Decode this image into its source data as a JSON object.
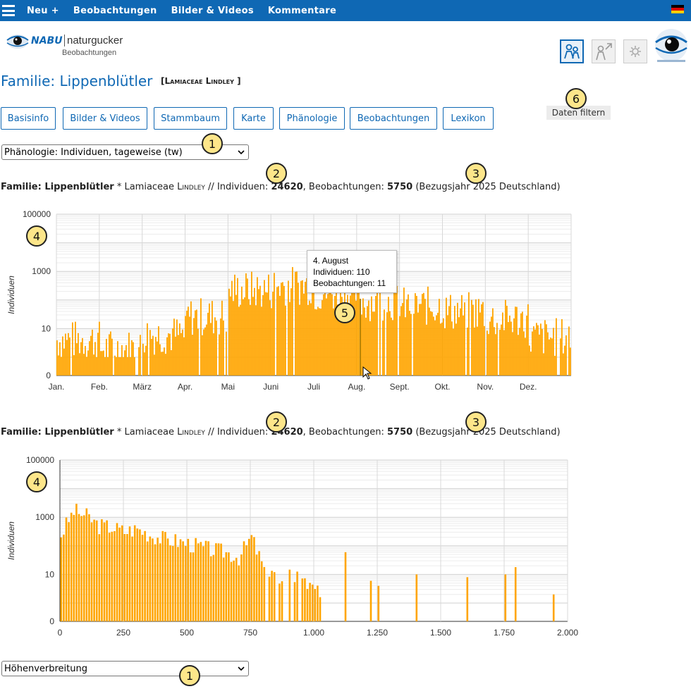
{
  "nav": {
    "items": [
      "Neu +",
      "Beobachtungen",
      "Bilder & Videos",
      "Kommentare"
    ],
    "flag_colors": [
      "#000000",
      "#dd0000",
      "#ffce00"
    ]
  },
  "logo": {
    "brand": "NABU",
    "name": "naturgucker",
    "sub": "Beobachtungen"
  },
  "header": {
    "icons": [
      "people-icon",
      "person-share-icon",
      "settings-icon"
    ],
    "app_logo": "naturgucker-app-logo"
  },
  "title": {
    "family": "Familie: Lippenblütler",
    "latin": "[Lamiaceae Lindley ]"
  },
  "filter_button": "Daten filtern",
  "tabs": [
    "Basisinfo",
    "Bilder & Videos",
    "Stammbaum",
    "Karte",
    "Phänologie",
    "Beobachtungen",
    "Lexikon"
  ],
  "select_top": "Phänologie: Individuen, tageweise (tw)",
  "select_bottom": "Höhenverbreitung",
  "stats": {
    "prefix": "Familie: Lippenblütler",
    "star": " * ",
    "latin_a": "Lamiaceae ",
    "latin_b": "Lindley",
    "ind_label": " // Individuen: ",
    "individuals": "24620",
    "obs_label": ", Beobachtungen: ",
    "observations": "5750",
    "suffix": " (Bezugsjahr 2025 Deutschland)"
  },
  "badges": [
    "1",
    "2",
    "3",
    "4",
    "5",
    "6"
  ],
  "tooltip": {
    "title": "4. August",
    "individuals": "Individuen: 110",
    "observations": "Beobachtungen: 11"
  },
  "colors": {
    "accent": "#0f68b4",
    "bar": "#ffa500",
    "badge": "#fde68a"
  },
  "chart_data": [
    {
      "type": "bar",
      "title": "",
      "xlabel": "",
      "ylabel": "Individuen",
      "yscale": "log",
      "ylim": [
        0,
        100000
      ],
      "yticks": [
        "100000",
        "1000",
        "10",
        "0"
      ],
      "categories": [
        "Jan.",
        "Feb.",
        "März",
        "Apr.",
        "Mai",
        "Juni",
        "Juli",
        "Aug.",
        "Sept.",
        "Okt.",
        "Nov.",
        "Dez."
      ],
      "series": [
        {
          "values": [
            4,
            2,
            6,
            26,
            220,
            320,
            180,
            90,
            60,
            40,
            22,
            5
          ]
        }
      ],
      "highlight": {
        "label": "4. August",
        "individuals": 110,
        "observations": 11
      }
    },
    {
      "type": "bar",
      "title": "",
      "xlabel": "",
      "ylabel": "Individuen",
      "yscale": "log",
      "ylim": [
        0,
        100000
      ],
      "yticks": [
        "100000",
        "1000",
        "10",
        "0"
      ],
      "xticks": [
        "0",
        "250",
        "500",
        "750",
        "1.000",
        "1.250",
        "1.500",
        "1.750",
        "2.000"
      ],
      "xlim": [
        0,
        2000
      ],
      "x": [
        0,
        50,
        100,
        150,
        200,
        250,
        300,
        350,
        400,
        450,
        500,
        550,
        600,
        650,
        700,
        750,
        800,
        850,
        900,
        950,
        1000,
        1050,
        1120,
        1220,
        1250,
        1400,
        1600,
        1750,
        1790,
        1940,
        2000
      ],
      "values": [
        250,
        1700,
        1100,
        500,
        450,
        320,
        400,
        250,
        180,
        150,
        120,
        90,
        70,
        60,
        40,
        200,
        15,
        8,
        9,
        6,
        3,
        3,
        60,
        6,
        4,
        10,
        8,
        10,
        18,
        2,
        7
      ]
    }
  ]
}
